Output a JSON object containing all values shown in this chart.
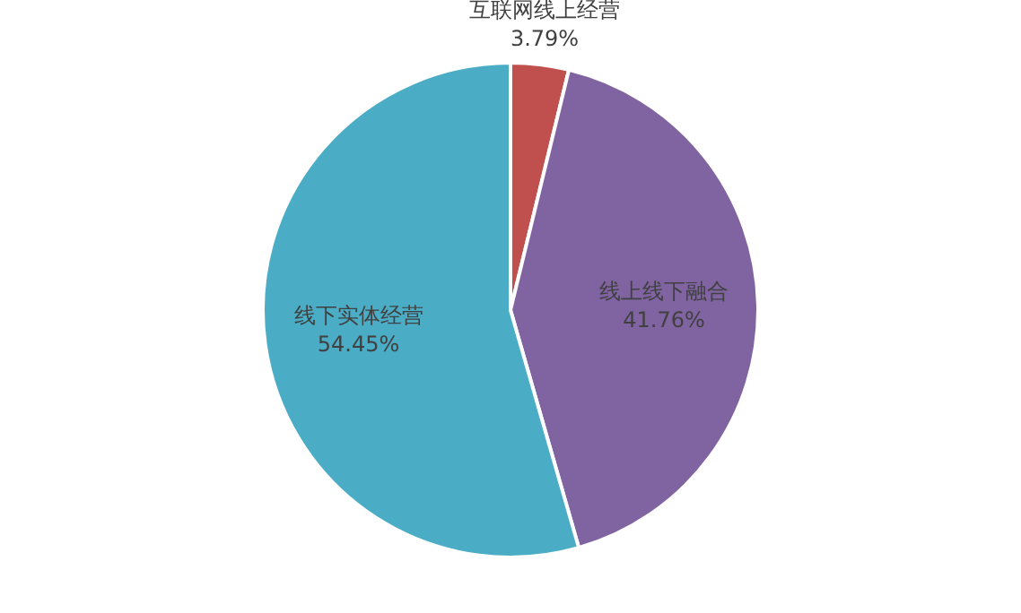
{
  "chart_data": {
    "type": "pie",
    "categories": [
      "互联网线上经营",
      "线上线下融合",
      "线下实体经营"
    ],
    "values": [
      3.79,
      41.76,
      54.45
    ],
    "colors": [
      "#c0504d",
      "#8064a2",
      "#4bacc6"
    ],
    "value_labels": [
      "3.79%",
      "41.76%",
      "54.45%"
    ],
    "legend": false
  }
}
